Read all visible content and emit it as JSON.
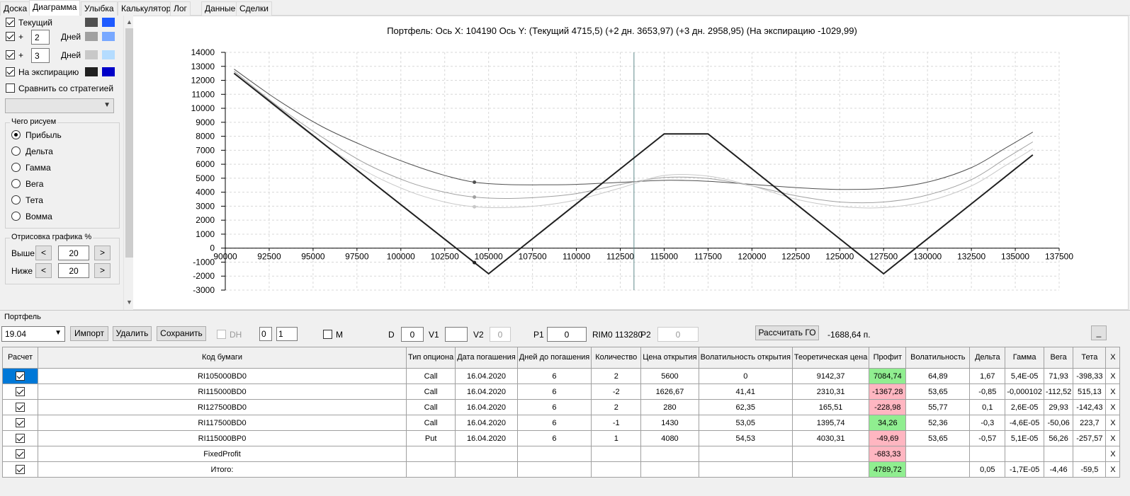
{
  "tabs": [
    {
      "label": "Доска"
    },
    {
      "label": "Диаграмма"
    },
    {
      "label": "Улыбка"
    },
    {
      "label": "Калькулятор"
    },
    {
      "label": "Лог"
    },
    {
      "label": "Данные"
    },
    {
      "label": "Сделки"
    }
  ],
  "sidebar": {
    "current_label": "Текущий",
    "plus_label": "+",
    "days_label": "Дней",
    "days1": "2",
    "days2": "3",
    "expiration_label": "На экспирацию",
    "compare_label": "Сравнить со стратегией",
    "compare_value": "",
    "what_group": "Чего рисуем",
    "options": [
      "Прибыль",
      "Дельта",
      "Гамма",
      "Вега",
      "Тета",
      "Вомма"
    ],
    "selected_option": "Прибыль",
    "draw_group": "Отрисовка графика %",
    "above_label": "Выше",
    "below_label": "Ниже",
    "above_value": "20",
    "below_value": "20",
    "prev": "<",
    "next": ">",
    "colors": {
      "current": [
        "#505050",
        "#1e5aff"
      ],
      "plus2": [
        "#a0a0a0",
        "#78a8ff"
      ],
      "plus3": [
        "#c8c8c8",
        "#b4dcff"
      ],
      "expiration": [
        "#202020",
        "#0000c8"
      ]
    }
  },
  "chart": {
    "header": "Портфель: Ось X: 104190 Ось Y:  (Текущий 4715,5)  (+2 дн. 3653,97)  (+3 дн. 2958,95)  (На экспирацию -1029,99)"
  },
  "chart_data": {
    "type": "line",
    "xlim": [
      90000,
      137500
    ],
    "ylim": [
      -3000,
      14000
    ],
    "x_ticks": [
      90000,
      92500,
      95000,
      97500,
      100000,
      102500,
      105000,
      107500,
      110000,
      112500,
      115000,
      117500,
      120000,
      122500,
      125000,
      127500,
      130000,
      132500,
      135000,
      137500
    ],
    "y_ticks": [
      -3000,
      -2000,
      -1000,
      0,
      1000,
      2000,
      3000,
      4000,
      5000,
      6000,
      7000,
      8000,
      9000,
      10000,
      11000,
      12000,
      13000,
      14000
    ],
    "grid": true,
    "cursor_x": 113280,
    "marker_x": 104190,
    "series": [
      {
        "name": "Текущий",
        "color": "#505050",
        "width": 1,
        "x": [
          90500,
          93000,
          95500,
          98000,
          100500,
          102500,
          104190,
          106000,
          108000,
          110000,
          112500,
          115000,
          117500,
          120000,
          122500,
          125000,
          127500,
          130000,
          132500,
          134500,
          136000
        ],
        "y": [
          12800,
          10580,
          8700,
          7250,
          6020,
          5200,
          4715,
          4550,
          4530,
          4560,
          4700,
          4850,
          4780,
          4560,
          4330,
          4200,
          4270,
          4720,
          5760,
          7200,
          8300
        ]
      },
      {
        "name": "+2 дн.",
        "color": "#a0a0a0",
        "width": 1,
        "x": [
          90500,
          93000,
          95500,
          98000,
          100500,
          102500,
          104190,
          106000,
          108000,
          110000,
          112500,
          115000,
          117500,
          120000,
          122500,
          125000,
          127500,
          130000,
          132500,
          134500,
          136000
        ],
        "y": [
          12650,
          10150,
          7950,
          6050,
          4700,
          4000,
          3654,
          3550,
          3650,
          3900,
          4550,
          5050,
          4980,
          4450,
          3750,
          3300,
          3300,
          3800,
          4900,
          6450,
          7600
        ]
      },
      {
        "name": "+3 дн.",
        "color": "#c8c8c8",
        "width": 1,
        "x": [
          90500,
          93000,
          95500,
          98000,
          100500,
          102500,
          104190,
          106000,
          108000,
          110000,
          112500,
          115000,
          117500,
          120000,
          122500,
          125000,
          127500,
          130000,
          132500,
          134500,
          136000
        ],
        "y": [
          12550,
          9950,
          7550,
          5500,
          4050,
          3300,
          2959,
          2900,
          3050,
          3450,
          4300,
          5200,
          5150,
          4450,
          3500,
          2980,
          2900,
          3350,
          4450,
          5950,
          7100
        ]
      },
      {
        "name": "На экспирацию",
        "color": "#202020",
        "width": 2,
        "x": [
          90500,
          104190,
          105000,
          115000,
          117500,
          127500,
          136000
        ],
        "y": [
          12500,
          -1030,
          -1830,
          8170,
          8170,
          -1830,
          6670
        ]
      }
    ],
    "markers": [
      {
        "series": "Текущий",
        "x": 104190,
        "y": 4715
      },
      {
        "series": "+2 дн.",
        "x": 104190,
        "y": 3654
      },
      {
        "series": "+3 дн.",
        "x": 104190,
        "y": 2959
      },
      {
        "series": "На экспирацию",
        "x": 104190,
        "y": -1030
      }
    ]
  },
  "portfolio": {
    "label": "Портфель",
    "date": "19.04",
    "import": "Импорт",
    "delete": "Удалить",
    "save": "Сохранить",
    "dh": "DH",
    "dh_v1": "0",
    "dh_v2": "1",
    "m": "M",
    "d_label": "D",
    "d_value": "0",
    "v1_label": "V1",
    "v1_value": "",
    "v2_label": "V2",
    "v2_value": "0",
    "p1_label": "P1",
    "p1_value": "0",
    "rim": "RIM0 113280",
    "p2_label": "P2",
    "p2_value": "0",
    "calc_go": "Рассчитать ГО",
    "go_value": "-1688,64 п.",
    "minimize": "_"
  },
  "table": {
    "headers": [
      "Расчет",
      "Код бумаги",
      "Тип опциона",
      "Дата погашения",
      "Дней до погашения",
      "Количество",
      "Цена открытия",
      "Волатильность открытия",
      "Теоретическая цена",
      "Профит",
      "Волатильность",
      "Дельта",
      "Гамма",
      "Вега",
      "Тета",
      "X"
    ],
    "rows": [
      {
        "code": "RI105000BD0",
        "type": "Call",
        "date": "16.04.2020",
        "days": "6",
        "qty": "2",
        "price": "5600",
        "vol_open": "0",
        "theo": "9142,37",
        "profit": "7084,74",
        "vol": "64,89",
        "delta": "1,67",
        "gamma": "5,4E-05",
        "vega": "71,93",
        "theta": "-398,33",
        "x": "X"
      },
      {
        "code": "RI115000BD0",
        "type": "Call",
        "date": "16.04.2020",
        "days": "6",
        "qty": "-2",
        "price": "1626,67",
        "vol_open": "41,41",
        "theo": "2310,31",
        "profit": "-1367,28",
        "vol": "53,65",
        "delta": "-0,85",
        "gamma": "-0,000102",
        "vega": "-112,52",
        "theta": "515,13",
        "x": "X"
      },
      {
        "code": "RI127500BD0",
        "type": "Call",
        "date": "16.04.2020",
        "days": "6",
        "qty": "2",
        "price": "280",
        "vol_open": "62,35",
        "theo": "165,51",
        "profit": "-228,98",
        "vol": "55,77",
        "delta": "0,1",
        "gamma": "2,6E-05",
        "vega": "29,93",
        "theta": "-142,43",
        "x": "X"
      },
      {
        "code": "RI117500BD0",
        "type": "Call",
        "date": "16.04.2020",
        "days": "6",
        "qty": "-1",
        "price": "1430",
        "vol_open": "53,05",
        "theo": "1395,74",
        "profit": "34,26",
        "vol": "52,36",
        "delta": "-0,3",
        "gamma": "-4,6E-05",
        "vega": "-50,06",
        "theta": "223,7",
        "x": "X"
      },
      {
        "code": "RI115000BP0",
        "type": "Put",
        "date": "16.04.2020",
        "days": "6",
        "qty": "1",
        "price": "4080",
        "vol_open": "54,53",
        "theo": "4030,31",
        "profit": "-49,69",
        "vol": "53,65",
        "delta": "-0,57",
        "gamma": "5,1E-05",
        "vega": "56,26",
        "theta": "-257,57",
        "x": "X"
      },
      {
        "code": "FixedProfit",
        "type": "",
        "date": "",
        "days": "",
        "qty": "",
        "price": "",
        "vol_open": "",
        "theo": "",
        "profit": "-683,33",
        "vol": "",
        "delta": "",
        "gamma": "",
        "vega": "",
        "theta": "",
        "x": "X"
      },
      {
        "code": "Итого:",
        "type": "",
        "date": "",
        "days": "",
        "qty": "",
        "price": "",
        "vol_open": "",
        "theo": "",
        "profit": "4789,72",
        "vol": "",
        "delta": "0,05",
        "gamma": "-1,7E-05",
        "vega": "-4,46",
        "theta": "-59,5",
        "x": "X"
      }
    ]
  }
}
